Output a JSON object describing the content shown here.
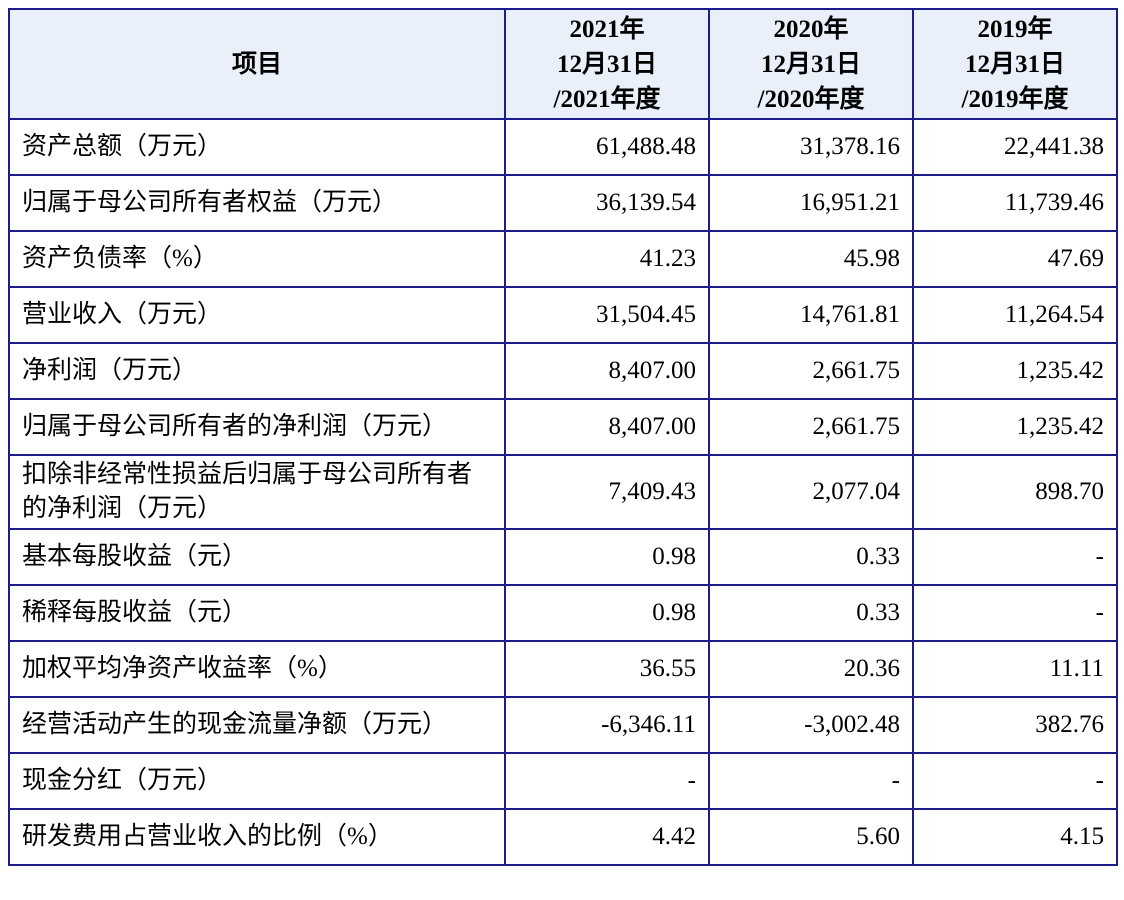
{
  "table": {
    "header": {
      "item": "项目",
      "cols": [
        {
          "line1": "2021年",
          "line2": "12月31日",
          "line3": "/2021年度"
        },
        {
          "line1": "2020年",
          "line2": "12月31日",
          "line3": "/2020年度"
        },
        {
          "line1": "2019年",
          "line2": "12月31日",
          "line3": "/2019年度"
        }
      ]
    },
    "rows": [
      {
        "label": "资产总额（万元）",
        "v2021": "61,488.48",
        "v2020": "31,378.16",
        "v2019": "22,441.38"
      },
      {
        "label": "归属于母公司所有者权益（万元）",
        "v2021": "36,139.54",
        "v2020": "16,951.21",
        "v2019": "11,739.46"
      },
      {
        "label": "资产负债率（%）",
        "v2021": "41.23",
        "v2020": "45.98",
        "v2019": "47.69"
      },
      {
        "label": "营业收入（万元）",
        "v2021": "31,504.45",
        "v2020": "14,761.81",
        "v2019": "11,264.54"
      },
      {
        "label": "净利润（万元）",
        "v2021": "8,407.00",
        "v2020": "2,661.75",
        "v2019": "1,235.42"
      },
      {
        "label": "归属于母公司所有者的净利润（万元）",
        "v2021": "8,407.00",
        "v2020": "2,661.75",
        "v2019": "1,235.42"
      },
      {
        "label": "扣除非经常性损益后归属于母公司所有者的净利润（万元）",
        "v2021": "7,409.43",
        "v2020": "2,077.04",
        "v2019": "898.70"
      },
      {
        "label": "基本每股收益（元）",
        "v2021": "0.98",
        "v2020": "0.33",
        "v2019": "-"
      },
      {
        "label": "稀释每股收益（元）",
        "v2021": "0.98",
        "v2020": "0.33",
        "v2019": "-"
      },
      {
        "label": "加权平均净资产收益率（%）",
        "v2021": "36.55",
        "v2020": "20.36",
        "v2019": "11.11"
      },
      {
        "label": "经营活动产生的现金流量净额（万元）",
        "v2021": "-6,346.11",
        "v2020": "-3,002.48",
        "v2019": "382.76"
      },
      {
        "label": "现金分红（万元）",
        "v2021": "-",
        "v2020": "-",
        "v2019": "-"
      },
      {
        "label": "研发费用占营业收入的比例（%）",
        "v2021": "4.42",
        "v2020": "5.60",
        "v2019": "4.15"
      }
    ]
  }
}
